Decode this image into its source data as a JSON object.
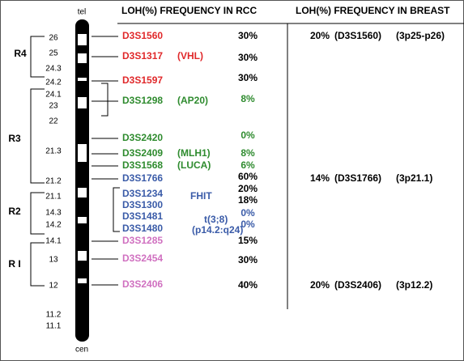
{
  "header": {
    "rcc": "LOH(%) FREQUENCY IN RCC",
    "breast": "LOH(%) FREQUENCY IN BREAST"
  },
  "ideogram": {
    "top": "tel",
    "bottom": "cen",
    "bands": [
      "26",
      "25",
      "24.3",
      "24.2",
      "24.1",
      "23",
      "22",
      "21.3",
      "21.2",
      "21.1",
      "14.3",
      "14.2",
      "14.1",
      "13",
      "12",
      "11.2",
      "11.1"
    ]
  },
  "regions": [
    "R4",
    "R3",
    "R2",
    "R I"
  ],
  "markers": [
    {
      "name": "D3S1560",
      "freq": "30%",
      "color": "#e0282a"
    },
    {
      "name": "D3S1317",
      "note": "(VHL)",
      "freq": "30%",
      "color": "#e0282a"
    },
    {
      "name": "D3S1597",
      "freq": "30%",
      "color": "#e0282a"
    },
    {
      "name": "D3S1298",
      "note": "(AP20)",
      "freq": "8%",
      "color": "#2e8b2e"
    },
    {
      "name": "D3S2420",
      "freq": "0%",
      "color": "#2e8b2e"
    },
    {
      "name": "D3S2409",
      "note": "(MLH1)",
      "freq": "8%",
      "color": "#2e8b2e"
    },
    {
      "name": "D3S1568",
      "note": "(LUCA)",
      "freq": "6%",
      "color": "#2e8b2e"
    },
    {
      "name": "D3S1766",
      "freq": "60%",
      "color": "#3a5ba8"
    },
    {
      "name": "D3S1234",
      "freq": "20%",
      "color": "#3a5ba8"
    },
    {
      "name": "D3S1300",
      "freq": "18%",
      "color": "#3a5ba8"
    },
    {
      "name": "D3S1481",
      "freq": "0%",
      "color": "#3a5ba8"
    },
    {
      "name": "D3S1480",
      "freq": "0%",
      "color": "#3a5ba8"
    },
    {
      "name": "D3S1285",
      "freq": "15%",
      "color": "#d070c0"
    },
    {
      "name": "D3S2454",
      "freq": "30%",
      "color": "#d070c0"
    },
    {
      "name": "D3S2406",
      "freq": "40%",
      "color": "#d070c0"
    }
  ],
  "annotations": [
    "FHIT",
    "t(3;8)",
    "(p14.2:q24)"
  ],
  "breast": [
    {
      "freq": "20%",
      "marker": "(D3S1560)",
      "locus": "(3p25-p26)"
    },
    {
      "freq": "14%",
      "marker": "(D3S1766)",
      "locus": "(3p21.1)"
    },
    {
      "freq": "20%",
      "marker": "(D3S2406)",
      "locus": "(3p12.2)"
    }
  ]
}
